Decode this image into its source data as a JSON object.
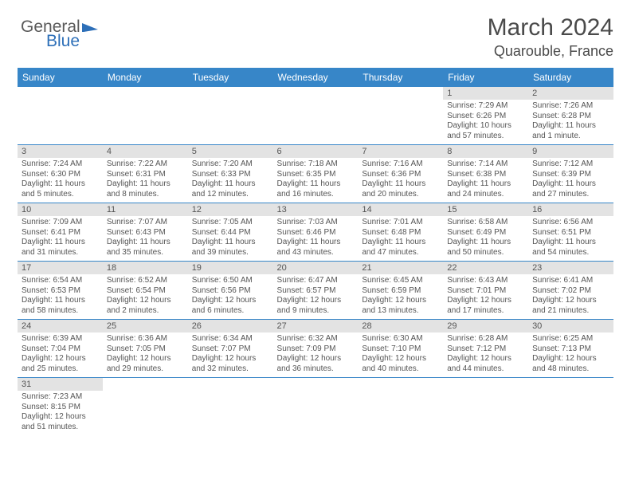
{
  "logo": {
    "text_general": "General",
    "text_blue": "Blue"
  },
  "header": {
    "month": "March 2024",
    "location": "Quarouble, France"
  },
  "colors": {
    "header_bg": "#3786c8",
    "header_text": "#ffffff",
    "daynum_bg": "#e3e3e3",
    "border": "#3786c8",
    "body_text": "#555555"
  },
  "weekdays": [
    "Sunday",
    "Monday",
    "Tuesday",
    "Wednesday",
    "Thursday",
    "Friday",
    "Saturday"
  ],
  "weeks": [
    [
      null,
      null,
      null,
      null,
      null,
      {
        "n": "1",
        "sr": "Sunrise: 7:29 AM",
        "ss": "Sunset: 6:26 PM",
        "dl": "Daylight: 10 hours and 57 minutes."
      },
      {
        "n": "2",
        "sr": "Sunrise: 7:26 AM",
        "ss": "Sunset: 6:28 PM",
        "dl": "Daylight: 11 hours and 1 minute."
      }
    ],
    [
      {
        "n": "3",
        "sr": "Sunrise: 7:24 AM",
        "ss": "Sunset: 6:30 PM",
        "dl": "Daylight: 11 hours and 5 minutes."
      },
      {
        "n": "4",
        "sr": "Sunrise: 7:22 AM",
        "ss": "Sunset: 6:31 PM",
        "dl": "Daylight: 11 hours and 8 minutes."
      },
      {
        "n": "5",
        "sr": "Sunrise: 7:20 AM",
        "ss": "Sunset: 6:33 PM",
        "dl": "Daylight: 11 hours and 12 minutes."
      },
      {
        "n": "6",
        "sr": "Sunrise: 7:18 AM",
        "ss": "Sunset: 6:35 PM",
        "dl": "Daylight: 11 hours and 16 minutes."
      },
      {
        "n": "7",
        "sr": "Sunrise: 7:16 AM",
        "ss": "Sunset: 6:36 PM",
        "dl": "Daylight: 11 hours and 20 minutes."
      },
      {
        "n": "8",
        "sr": "Sunrise: 7:14 AM",
        "ss": "Sunset: 6:38 PM",
        "dl": "Daylight: 11 hours and 24 minutes."
      },
      {
        "n": "9",
        "sr": "Sunrise: 7:12 AM",
        "ss": "Sunset: 6:39 PM",
        "dl": "Daylight: 11 hours and 27 minutes."
      }
    ],
    [
      {
        "n": "10",
        "sr": "Sunrise: 7:09 AM",
        "ss": "Sunset: 6:41 PM",
        "dl": "Daylight: 11 hours and 31 minutes."
      },
      {
        "n": "11",
        "sr": "Sunrise: 7:07 AM",
        "ss": "Sunset: 6:43 PM",
        "dl": "Daylight: 11 hours and 35 minutes."
      },
      {
        "n": "12",
        "sr": "Sunrise: 7:05 AM",
        "ss": "Sunset: 6:44 PM",
        "dl": "Daylight: 11 hours and 39 minutes."
      },
      {
        "n": "13",
        "sr": "Sunrise: 7:03 AM",
        "ss": "Sunset: 6:46 PM",
        "dl": "Daylight: 11 hours and 43 minutes."
      },
      {
        "n": "14",
        "sr": "Sunrise: 7:01 AM",
        "ss": "Sunset: 6:48 PM",
        "dl": "Daylight: 11 hours and 47 minutes."
      },
      {
        "n": "15",
        "sr": "Sunrise: 6:58 AM",
        "ss": "Sunset: 6:49 PM",
        "dl": "Daylight: 11 hours and 50 minutes."
      },
      {
        "n": "16",
        "sr": "Sunrise: 6:56 AM",
        "ss": "Sunset: 6:51 PM",
        "dl": "Daylight: 11 hours and 54 minutes."
      }
    ],
    [
      {
        "n": "17",
        "sr": "Sunrise: 6:54 AM",
        "ss": "Sunset: 6:53 PM",
        "dl": "Daylight: 11 hours and 58 minutes."
      },
      {
        "n": "18",
        "sr": "Sunrise: 6:52 AM",
        "ss": "Sunset: 6:54 PM",
        "dl": "Daylight: 12 hours and 2 minutes."
      },
      {
        "n": "19",
        "sr": "Sunrise: 6:50 AM",
        "ss": "Sunset: 6:56 PM",
        "dl": "Daylight: 12 hours and 6 minutes."
      },
      {
        "n": "20",
        "sr": "Sunrise: 6:47 AM",
        "ss": "Sunset: 6:57 PM",
        "dl": "Daylight: 12 hours and 9 minutes."
      },
      {
        "n": "21",
        "sr": "Sunrise: 6:45 AM",
        "ss": "Sunset: 6:59 PM",
        "dl": "Daylight: 12 hours and 13 minutes."
      },
      {
        "n": "22",
        "sr": "Sunrise: 6:43 AM",
        "ss": "Sunset: 7:01 PM",
        "dl": "Daylight: 12 hours and 17 minutes."
      },
      {
        "n": "23",
        "sr": "Sunrise: 6:41 AM",
        "ss": "Sunset: 7:02 PM",
        "dl": "Daylight: 12 hours and 21 minutes."
      }
    ],
    [
      {
        "n": "24",
        "sr": "Sunrise: 6:39 AM",
        "ss": "Sunset: 7:04 PM",
        "dl": "Daylight: 12 hours and 25 minutes."
      },
      {
        "n": "25",
        "sr": "Sunrise: 6:36 AM",
        "ss": "Sunset: 7:05 PM",
        "dl": "Daylight: 12 hours and 29 minutes."
      },
      {
        "n": "26",
        "sr": "Sunrise: 6:34 AM",
        "ss": "Sunset: 7:07 PM",
        "dl": "Daylight: 12 hours and 32 minutes."
      },
      {
        "n": "27",
        "sr": "Sunrise: 6:32 AM",
        "ss": "Sunset: 7:09 PM",
        "dl": "Daylight: 12 hours and 36 minutes."
      },
      {
        "n": "28",
        "sr": "Sunrise: 6:30 AM",
        "ss": "Sunset: 7:10 PM",
        "dl": "Daylight: 12 hours and 40 minutes."
      },
      {
        "n": "29",
        "sr": "Sunrise: 6:28 AM",
        "ss": "Sunset: 7:12 PM",
        "dl": "Daylight: 12 hours and 44 minutes."
      },
      {
        "n": "30",
        "sr": "Sunrise: 6:25 AM",
        "ss": "Sunset: 7:13 PM",
        "dl": "Daylight: 12 hours and 48 minutes."
      }
    ],
    [
      {
        "n": "31",
        "sr": "Sunrise: 7:23 AM",
        "ss": "Sunset: 8:15 PM",
        "dl": "Daylight: 12 hours and 51 minutes."
      },
      null,
      null,
      null,
      null,
      null,
      null
    ]
  ]
}
